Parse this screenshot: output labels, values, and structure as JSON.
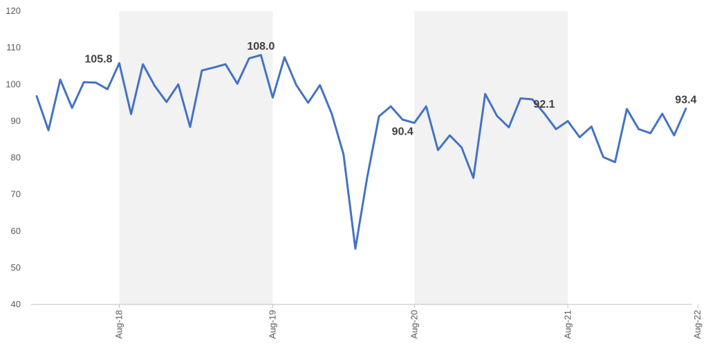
{
  "chart_data": {
    "type": "line",
    "title": "",
    "xlabel": "",
    "ylabel": "",
    "ylim": [
      40,
      120
    ],
    "yticks": [
      40,
      50,
      60,
      70,
      80,
      90,
      100,
      110,
      120
    ],
    "grid": false,
    "legend": "none",
    "line_color": "#4472C4",
    "shade_color": "#F2F2F2",
    "x_tick_labels": [
      {
        "index": 7,
        "label": "Aug-18"
      },
      {
        "index": 20,
        "label": "Aug-19"
      },
      {
        "index": 32,
        "label": "Aug-20"
      },
      {
        "index": 45,
        "label": "Aug-21"
      },
      {
        "index": 56,
        "label": "Aug-22"
      }
    ],
    "shaded_ranges": [
      [
        7,
        20
      ],
      [
        32,
        45
      ]
    ],
    "series": [
      {
        "values": [
          96.8,
          87.5,
          101.3,
          93.6,
          100.6,
          100.5,
          98.7,
          105.8,
          91.9,
          105.5,
          99.6,
          95.2,
          100.0,
          88.4,
          103.8,
          104.6,
          105.5,
          100.2,
          107.1,
          108.0,
          96.4,
          107.4,
          99.8,
          95.0,
          99.8,
          92.0,
          80.9,
          55.2,
          74.6,
          91.3,
          94.0,
          90.4,
          89.5,
          94.0,
          82.1,
          86.1,
          82.8,
          74.5,
          97.4,
          91.4,
          88.3,
          96.2,
          95.9,
          92.1,
          87.8,
          90.0,
          85.6,
          88.5,
          80.2,
          78.8,
          93.3,
          87.8,
          86.7,
          92.0,
          86.1,
          93.4
        ]
      }
    ],
    "data_labels": [
      {
        "index": 7,
        "text": "105.8",
        "pos": "left-above"
      },
      {
        "index": 19,
        "text": "108.0",
        "pos": "above"
      },
      {
        "index": 31,
        "text": "90.4",
        "pos": "below"
      },
      {
        "index": 43,
        "text": "92.1",
        "pos": "above"
      },
      {
        "index": 55,
        "text": "93.4",
        "pos": "above"
      }
    ]
  }
}
